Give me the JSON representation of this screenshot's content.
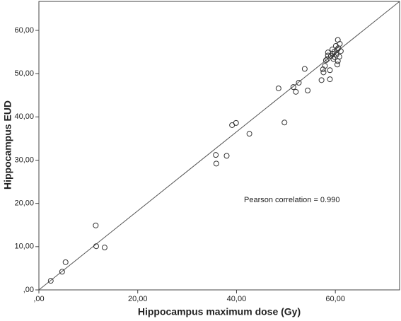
{
  "chart_data": {
    "type": "scatter",
    "x_label": "Hippocampus maximum dose (Gy)",
    "y_label": "Hippocampus EUD",
    "annotation": "Pearson correlation = 0.990",
    "x": [
      2.4,
      4.7,
      5.4,
      11.5,
      11.6,
      13.3,
      35.8,
      35.9,
      38.0,
      39.1,
      39.9,
      42.6,
      48.5,
      49.7,
      51.5,
      52.0,
      52.6,
      53.8,
      54.4,
      57.2,
      57.5,
      57.6,
      57.9,
      58.1,
      58.4,
      58.5,
      58.5,
      58.9,
      58.9,
      59.1,
      59.4,
      59.5,
      59.6,
      59.8,
      59.9,
      60.1,
      60.2,
      60.4,
      60.5,
      60.4,
      60.6,
      60.8,
      60.9,
      61.1,
      60.5
    ],
    "values": [
      2.1,
      4.2,
      6.4,
      14.9,
      10.1,
      9.8,
      31.2,
      29.2,
      31.0,
      38.1,
      38.6,
      36.1,
      46.6,
      38.7,
      46.9,
      45.8,
      47.9,
      51.1,
      46.1,
      48.5,
      51.0,
      50.3,
      51.8,
      53.1,
      53.4,
      54.2,
      54.9,
      50.8,
      48.7,
      54.1,
      55.6,
      54.6,
      53.4,
      55.1,
      53.8,
      56.4,
      54.4,
      55.6,
      52.9,
      52.1,
      55.9,
      53.9,
      56.9,
      55.2,
      57.8
    ],
    "marker_color": "#333333",
    "fit_line": {
      "x": [
        0,
        73
      ],
      "y": [
        0,
        66.7
      ],
      "color": "#555555"
    },
    "xlim": [
      0,
      73
    ],
    "ylim": [
      0,
      66.7
    ],
    "xticks": [
      {
        "value": 0,
        "label": ",00"
      },
      {
        "value": 20,
        "label": "20,00"
      },
      {
        "value": 40,
        "label": "40,00"
      },
      {
        "value": 60,
        "label": "60,00"
      }
    ],
    "yticks": [
      {
        "value": 0,
        "label": ",00"
      },
      {
        "value": 10,
        "label": "10,00"
      },
      {
        "value": 20,
        "label": "20,00"
      },
      {
        "value": 30,
        "label": "30,00"
      },
      {
        "value": 40,
        "label": "40,00"
      },
      {
        "value": 50,
        "label": "50,00"
      },
      {
        "value": 60,
        "label": "60,00"
      }
    ],
    "grid": false
  }
}
